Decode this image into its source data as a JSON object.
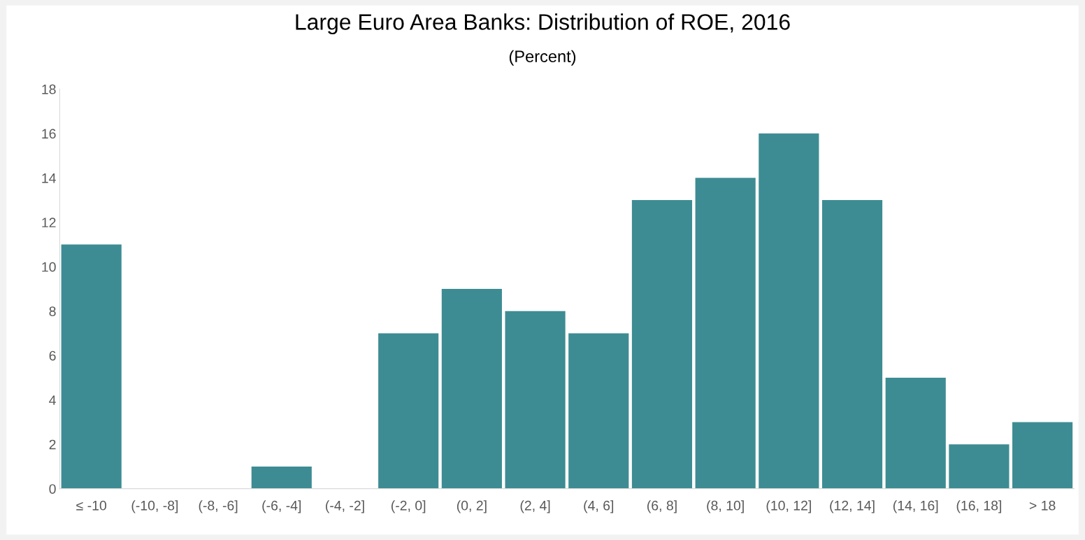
{
  "chart_data": {
    "type": "bar",
    "title": "Large Euro Area Banks: Distribution of ROE, 2016",
    "subtitle": "(Percent)",
    "categories": [
      "≤ -10",
      "(-10, -8]",
      "(-8, -6]",
      "(-6, -4]",
      "(-4, -2]",
      "(-2, 0]",
      "(0, 2]",
      "(2, 4]",
      "(4, 6]",
      "(6, 8]",
      "(8, 10]",
      "(10, 12]",
      "(12, 14]",
      "(14, 16]",
      "(16, 18]",
      "> 18"
    ],
    "values": [
      11,
      0,
      0,
      1,
      0,
      7,
      9,
      8,
      7,
      13,
      14,
      16,
      13,
      5,
      2,
      3
    ],
    "color": "#3d8c93",
    "ylim": [
      0,
      18
    ],
    "yticks": [
      0,
      2,
      4,
      6,
      8,
      10,
      12,
      14,
      16,
      18
    ],
    "grid": false,
    "legend": false
  }
}
